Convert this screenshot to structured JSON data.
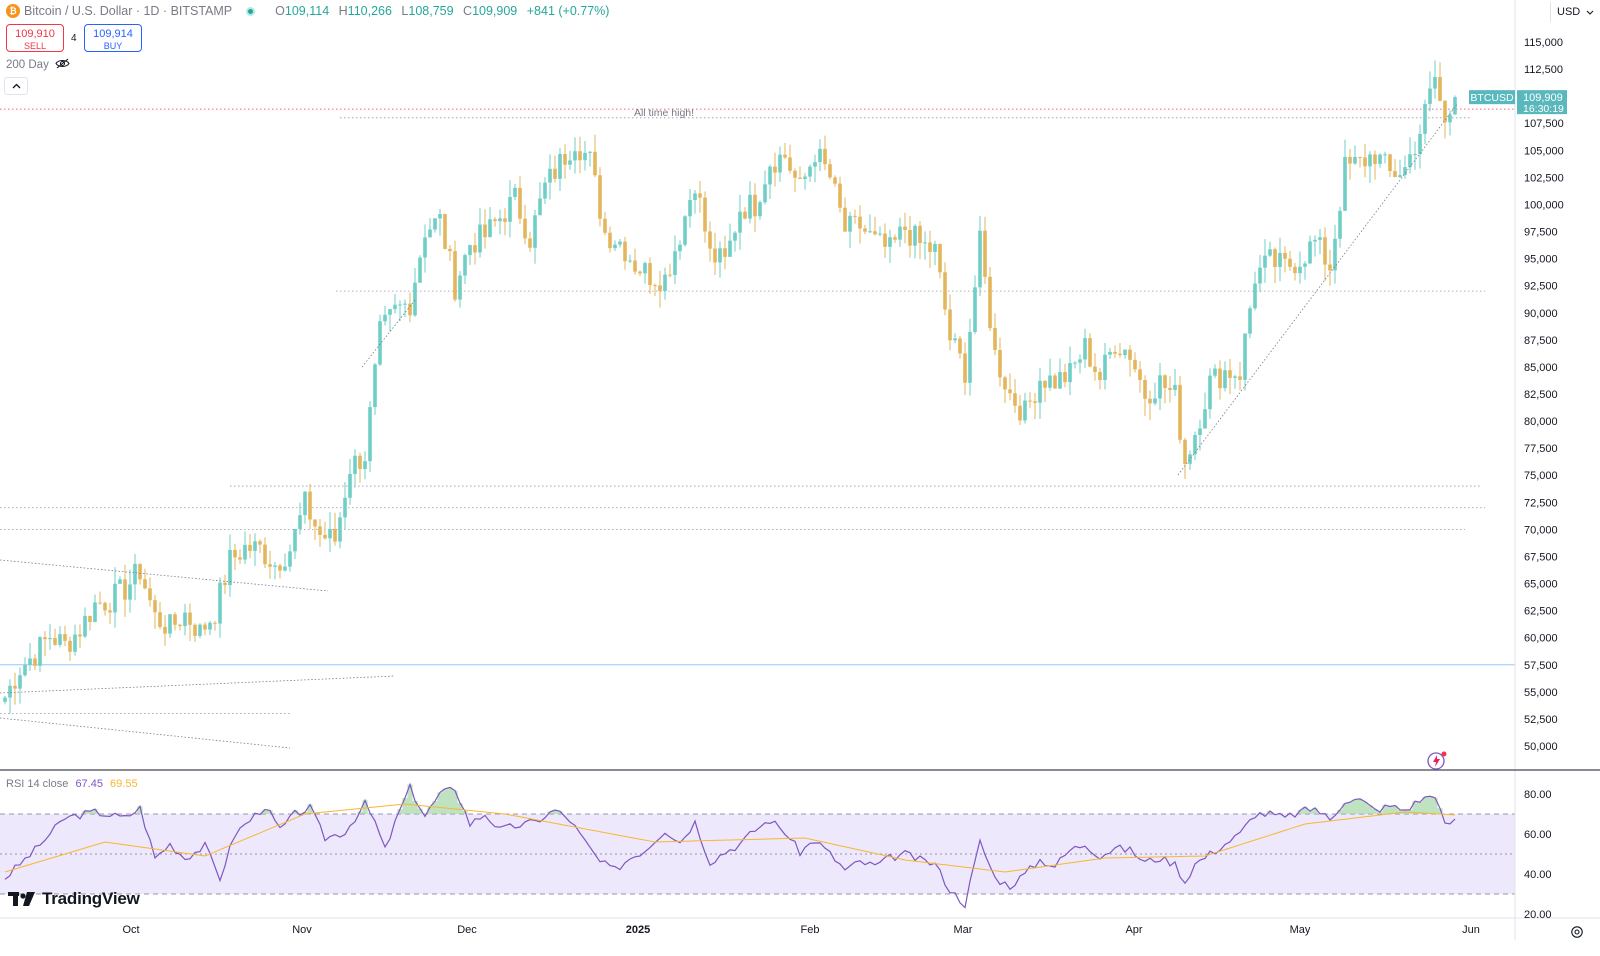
{
  "header": {
    "symbol_title": "Bitcoin / U.S. Dollar · 1D · BITSTAMP",
    "coin_icon": "bitcoin-icon",
    "ohlc": {
      "open_label": "O",
      "open": "109,114",
      "high_label": "H",
      "high": "110,266",
      "low_label": "L",
      "low": "108,759",
      "close_label": "C",
      "close": "109,909",
      "change": "+841 (+0.77%)"
    },
    "sell_price": "109,910",
    "sell_label": "SELL",
    "buy_price": "109,914",
    "buy_label": "BUY",
    "spread": "4",
    "ma_label": "200 Day",
    "collapse_icon": "chevron-up-icon",
    "currency": "USD"
  },
  "annotations": {
    "ath_text": "All time high!"
  },
  "price_tag": {
    "symbol": "BTCUSD",
    "price": "109,909",
    "countdown": "16:30:19"
  },
  "rsi": {
    "label": "RSI 14 close",
    "value": "67.45",
    "ma_value": "69.55"
  },
  "branding": {
    "logo_text": "TradingView"
  },
  "colors": {
    "up": "#6fcfc6",
    "down": "#e3b55c",
    "rsi_line": "#7e57c2",
    "rsi_ma": "#f7b731",
    "rsi_band": "#ede8fb",
    "price_tag": "#59b8bd"
  },
  "chart_data": {
    "type": "candlestick",
    "symbol": "BTCUSD",
    "timeframe": "1D",
    "y_axis_ticks": [
      50000,
      52500,
      55000,
      57500,
      60000,
      62500,
      65000,
      67500,
      70000,
      72500,
      75000,
      77500,
      80000,
      82500,
      85000,
      87500,
      90000,
      92500,
      95000,
      97500,
      100000,
      102500,
      105000,
      107500,
      110000,
      112500,
      115000
    ],
    "y_tick_labels": [
      "50,000",
      "52,500",
      "55,000",
      "57,500",
      "60,000",
      "62,500",
      "65,000",
      "67,500",
      "70,000",
      "72,500",
      "75,000",
      "77,500",
      "80,000",
      "82,500",
      "85,000",
      "87,500",
      "90,000",
      "92,500",
      "95,000",
      "97,500",
      "100,000",
      "102,500",
      "105,000",
      "107,500",
      "110,000",
      "112,500",
      "115,000"
    ],
    "x_tick_labels": [
      "Oct",
      "Nov",
      "Dec",
      "2025",
      "Feb",
      "Mar",
      "Apr",
      "May",
      "Jun"
    ],
    "date_range": [
      "2024-09-15",
      "2025-05-22"
    ],
    "anchor_closes": [
      [
        0,
        54500
      ],
      [
        3,
        57200
      ],
      [
        6,
        58500
      ],
      [
        9,
        60200
      ],
      [
        12,
        59300
      ],
      [
        15,
        60800
      ],
      [
        18,
        63100
      ],
      [
        21,
        63500
      ],
      [
        24,
        64500
      ],
      [
        27,
        66200
      ],
      [
        30,
        61900
      ],
      [
        33,
        60900
      ],
      [
        36,
        62200
      ],
      [
        39,
        60500
      ],
      [
        42,
        62400
      ],
      [
        45,
        67100
      ],
      [
        48,
        68300
      ],
      [
        51,
        68200
      ],
      [
        54,
        66800
      ],
      [
        57,
        68200
      ],
      [
        60,
        72300
      ],
      [
        63,
        69500
      ],
      [
        66,
        69000
      ],
      [
        69,
        75800
      ],
      [
        72,
        76900
      ],
      [
        75,
        88000
      ],
      [
        78,
        90100
      ],
      [
        81,
        91000
      ],
      [
        84,
        97700
      ],
      [
        87,
        98500
      ],
      [
        90,
        92500
      ],
      [
        93,
        96400
      ],
      [
        96,
        97100
      ],
      [
        99,
        98800
      ],
      [
        102,
        100500
      ],
      [
        105,
        96900
      ],
      [
        108,
        101600
      ],
      [
        111,
        103800
      ],
      [
        114,
        106000
      ],
      [
        117,
        104000
      ],
      [
        120,
        97400
      ],
      [
        123,
        96600
      ],
      [
        126,
        94500
      ],
      [
        129,
        93500
      ],
      [
        132,
        93200
      ],
      [
        135,
        97300
      ],
      [
        138,
        102300
      ],
      [
        141,
        95300
      ],
      [
        144,
        94600
      ],
      [
        147,
        99700
      ],
      [
        150,
        100000
      ],
      [
        153,
        104000
      ],
      [
        156,
        104500
      ],
      [
        159,
        101300
      ],
      [
        162,
        104900
      ],
      [
        165,
        102500
      ],
      [
        168,
        97600
      ],
      [
        171,
        98000
      ],
      [
        174,
        96500
      ],
      [
        177,
        95700
      ],
      [
        180,
        97800
      ],
      [
        183,
        96300
      ],
      [
        186,
        95700
      ],
      [
        189,
        87600
      ],
      [
        192,
        84700
      ],
      [
        195,
        96300
      ],
      [
        198,
        86100
      ],
      [
        201,
        82500
      ],
      [
        204,
        80700
      ],
      [
        207,
        84000
      ],
      [
        210,
        83700
      ],
      [
        213,
        84300
      ],
      [
        216,
        86800
      ],
      [
        219,
        84000
      ],
      [
        222,
        87300
      ],
      [
        225,
        86300
      ],
      [
        228,
        82500
      ],
      [
        231,
        83600
      ],
      [
        234,
        82300
      ],
      [
        236,
        76300
      ],
      [
        238,
        79000
      ],
      [
        241,
        83600
      ],
      [
        244,
        84600
      ],
      [
        247,
        84500
      ],
      [
        250,
        93400
      ],
      [
        253,
        94700
      ],
      [
        256,
        94200
      ],
      [
        259,
        95000
      ],
      [
        262,
        96500
      ],
      [
        265,
        94300
      ],
      [
        268,
        103300
      ],
      [
        271,
        103800
      ],
      [
        274,
        104700
      ],
      [
        277,
        102800
      ],
      [
        280,
        103300
      ],
      [
        283,
        106800
      ],
      [
        286,
        111700
      ],
      [
        288,
        107300
      ],
      [
        290,
        109909
      ]
    ],
    "candle_count": 291,
    "reference_lines": [
      {
        "style": "dotted",
        "price": 108800,
        "color": "#f23645"
      },
      {
        "style": "dotted",
        "price": 108000
      },
      {
        "style": "dotted",
        "price": 92000
      },
      {
        "style": "dotted",
        "price": 74000
      },
      {
        "style": "dotted",
        "price": 72000
      },
      {
        "style": "dotted",
        "price": 70000
      },
      {
        "style": "solid",
        "price": 57500,
        "color": "#90caf9"
      },
      {
        "style": "dotted",
        "price": 53000
      }
    ],
    "rsi": {
      "ticks": [
        20,
        40,
        60,
        80
      ],
      "upper_band": 70,
      "middle": 50,
      "lower_band": 30,
      "anchors": [
        [
          0,
          38
        ],
        [
          6,
          52
        ],
        [
          12,
          68
        ],
        [
          18,
          71
        ],
        [
          24,
          68
        ],
        [
          27,
          73
        ],
        [
          30,
          48
        ],
        [
          33,
          55
        ],
        [
          36,
          48
        ],
        [
          40,
          54
        ],
        [
          43,
          38
        ],
        [
          46,
          60
        ],
        [
          52,
          74
        ],
        [
          55,
          62
        ],
        [
          58,
          70
        ],
        [
          61,
          73
        ],
        [
          64,
          58
        ],
        [
          68,
          61
        ],
        [
          72,
          75
        ],
        [
          74,
          66
        ],
        [
          76,
          52
        ],
        [
          79,
          72
        ],
        [
          81,
          83
        ],
        [
          84,
          69
        ],
        [
          87,
          80
        ],
        [
          90,
          83
        ],
        [
          93,
          65
        ],
        [
          96,
          70
        ],
        [
          99,
          62
        ],
        [
          102,
          64
        ],
        [
          106,
          66
        ],
        [
          110,
          72
        ],
        [
          113,
          67
        ],
        [
          116,
          56
        ],
        [
          119,
          46
        ],
        [
          122,
          42
        ],
        [
          125,
          48
        ],
        [
          128,
          52
        ],
        [
          132,
          62
        ],
        [
          135,
          56
        ],
        [
          138,
          66
        ],
        [
          141,
          46
        ],
        [
          144,
          51
        ],
        [
          147,
          55
        ],
        [
          150,
          62
        ],
        [
          153,
          67
        ],
        [
          156,
          61
        ],
        [
          159,
          51
        ],
        [
          162,
          57
        ],
        [
          165,
          50
        ],
        [
          168,
          42
        ],
        [
          171,
          46
        ],
        [
          174,
          44
        ],
        [
          177,
          48
        ],
        [
          180,
          50
        ],
        [
          183,
          47
        ],
        [
          186,
          45
        ],
        [
          189,
          32
        ],
        [
          192,
          25
        ],
        [
          195,
          56
        ],
        [
          198,
          38
        ],
        [
          201,
          34
        ],
        [
          204,
          40
        ],
        [
          207,
          47
        ],
        [
          210,
          44
        ],
        [
          213,
          52
        ],
        [
          216,
          55
        ],
        [
          219,
          49
        ],
        [
          222,
          53
        ],
        [
          225,
          52
        ],
        [
          228,
          46
        ],
        [
          231,
          48
        ],
        [
          234,
          45
        ],
        [
          236,
          36
        ],
        [
          238,
          45
        ],
        [
          241,
          50
        ],
        [
          244,
          55
        ],
        [
          247,
          60
        ],
        [
          250,
          70
        ],
        [
          253,
          70
        ],
        [
          256,
          68
        ],
        [
          259,
          71
        ],
        [
          262,
          73
        ],
        [
          265,
          67
        ],
        [
          268,
          77
        ],
        [
          271,
          77
        ],
        [
          274,
          72
        ],
        [
          277,
          74
        ],
        [
          280,
          72
        ],
        [
          283,
          77
        ],
        [
          286,
          80
        ],
        [
          288,
          64
        ],
        [
          290,
          67.45
        ]
      ],
      "ma_anchors": [
        [
          0,
          41
        ],
        [
          20,
          56
        ],
        [
          40,
          49
        ],
        [
          60,
          70
        ],
        [
          80,
          75
        ],
        [
          100,
          70
        ],
        [
          130,
          56
        ],
        [
          160,
          58
        ],
        [
          180,
          47
        ],
        [
          200,
          41
        ],
        [
          220,
          48
        ],
        [
          240,
          49
        ],
        [
          260,
          65
        ],
        [
          280,
          71
        ],
        [
          290,
          69.55
        ]
      ]
    }
  }
}
